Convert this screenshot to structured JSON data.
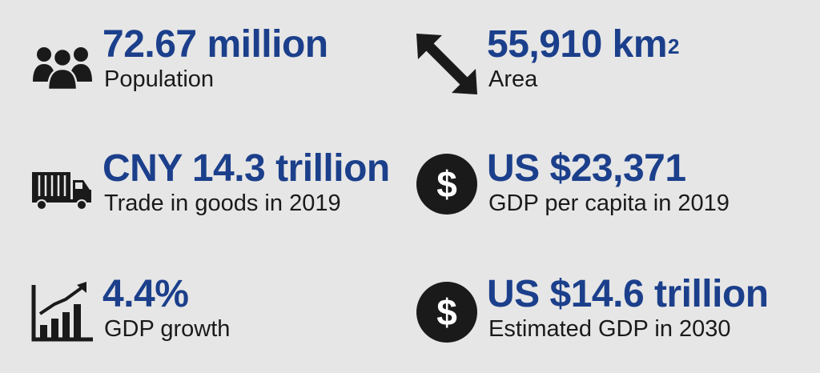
{
  "colors": {
    "background": "#e6e6e6",
    "value_text": "#1b3f8b",
    "label_text": "#1a1a1a",
    "icon": "#1a1a1a"
  },
  "stats": [
    {
      "icon": "people-icon",
      "value": "72.67 million",
      "label": "Population"
    },
    {
      "icon": "diagonal-double-arrow-icon",
      "value": "55,910 km",
      "value_superscript": "2",
      "label": "Area"
    },
    {
      "icon": "truck-icon",
      "value": "CNY 14.3 trillion",
      "label": "Trade in goods in 2019"
    },
    {
      "icon": "dollar-coin-icon",
      "value": "US $23,371",
      "label": "GDP per capita in 2019"
    },
    {
      "icon": "growth-chart-icon",
      "value": "4.4%",
      "label": "GDP growth"
    },
    {
      "icon": "dollar-coin-icon",
      "value": "US $14.6 trillion",
      "label": "Estimated GDP in 2030"
    }
  ]
}
